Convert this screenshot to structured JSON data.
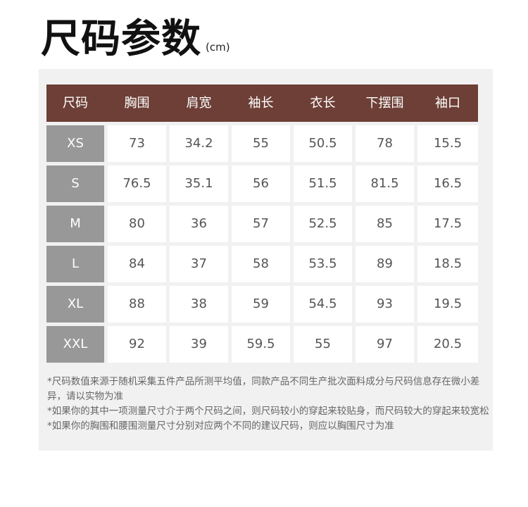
{
  "title": "尺码参数",
  "unit": "(cm)",
  "colors": {
    "header_bg": "#6d3f36",
    "size_col_bg": "#989898",
    "panel_bg": "#f1f1f1"
  },
  "table": {
    "headers": [
      "尺码",
      "胸围",
      "肩宽",
      "袖长",
      "衣长",
      "下摆围",
      "袖口"
    ],
    "rows": [
      [
        "XS",
        "73",
        "34.2",
        "55",
        "50.5",
        "78",
        "15.5"
      ],
      [
        "S",
        "76.5",
        "35.1",
        "56",
        "51.5",
        "81.5",
        "16.5"
      ],
      [
        "M",
        "80",
        "36",
        "57",
        "52.5",
        "85",
        "17.5"
      ],
      [
        "L",
        "84",
        "37",
        "58",
        "53.5",
        "89",
        "18.5"
      ],
      [
        "XL",
        "88",
        "38",
        "59",
        "54.5",
        "93",
        "19.5"
      ],
      [
        "XXL",
        "92",
        "39",
        "59.5",
        "55",
        "97",
        "20.5"
      ]
    ]
  },
  "notes": [
    "*尺码数值来源于随机采集五件产品所测平均值，同款产品不同生产批次面料成分与尺码信息存在微小差异，请以实物为准",
    "*如果你的其中一项测量尺寸介于两个尺码之间，则尺码较小的穿起来较贴身，而尺码较大的穿起来较宽松",
    "*如果你的胸围和腰围测量尺寸分别对应两个不同的建议尺码，则应以胸围尺寸为准"
  ]
}
